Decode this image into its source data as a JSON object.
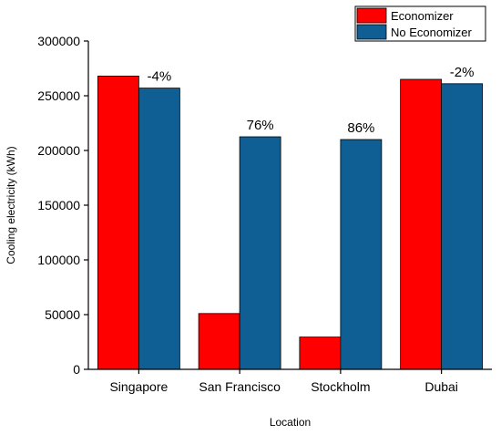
{
  "chart_data": {
    "type": "bar",
    "categories": [
      "Singapore",
      "San Francisco",
      "Stockholm",
      "Dubai"
    ],
    "series": [
      {
        "name": "Economizer",
        "values": [
          268000,
          51000,
          29500,
          265000
        ],
        "color": "#ff0000"
      },
      {
        "name": "No Economizer",
        "values": [
          257000,
          212500,
          210000,
          261000
        ],
        "color": "#0f5f95"
      }
    ],
    "data_labels": [
      "-4%",
      "76%",
      "86%",
      "-2%"
    ],
    "xlabel": "Location",
    "ylabel": "Cooling electricity (kWh)",
    "ylim": [
      0,
      300000
    ],
    "yticks": [
      0,
      50000,
      100000,
      150000,
      200000,
      250000,
      300000
    ],
    "ytick_labels": [
      "0",
      "50000",
      "100000",
      "150000",
      "200000",
      "250000",
      "300000"
    ],
    "legend_position": "top-right",
    "grid": false
  }
}
